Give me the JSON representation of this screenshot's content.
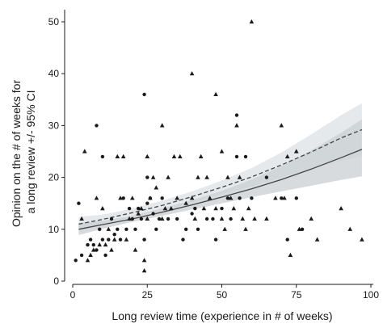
{
  "chart_data": {
    "type": "scatter",
    "xlabel": "Long review time (experience in # of weeks)",
    "ylabel": [
      "Opinion on the # of weeks for",
      "a long review +/- 95% CI"
    ],
    "xlim": [
      0,
      100
    ],
    "ylim": [
      0,
      52
    ],
    "x_ticks": [
      0,
      25,
      50,
      75,
      100
    ],
    "y_ticks": [
      0,
      10,
      20,
      30,
      40,
      50
    ],
    "grid": false,
    "colors": {
      "points": "#1a1a1a",
      "solid_line": "#444444",
      "dashed_line": "#444444",
      "band_solid": "#c9cfd3",
      "band_dashed": "#dde2e5"
    },
    "series": [
      {
        "marker": "circle",
        "points": [
          [
            1,
            4
          ],
          [
            2,
            15
          ],
          [
            3,
            5
          ],
          [
            5,
            7
          ],
          [
            6,
            8
          ],
          [
            7,
            7
          ],
          [
            8,
            6
          ],
          [
            8,
            30
          ],
          [
            9,
            10
          ],
          [
            10,
            8
          ],
          [
            10,
            24
          ],
          [
            11,
            5
          ],
          [
            12,
            8
          ],
          [
            13,
            12
          ],
          [
            14,
            9
          ],
          [
            15,
            10
          ],
          [
            16,
            8
          ],
          [
            17,
            16
          ],
          [
            18,
            10
          ],
          [
            19,
            14
          ],
          [
            20,
            12
          ],
          [
            21,
            10
          ],
          [
            22,
            14
          ],
          [
            23,
            12
          ],
          [
            24,
            36
          ],
          [
            24,
            8
          ],
          [
            25,
            20
          ],
          [
            25,
            15
          ],
          [
            26,
            16
          ],
          [
            27,
            13
          ],
          [
            28,
            10
          ],
          [
            29,
            12
          ],
          [
            30,
            16
          ],
          [
            32,
            12
          ],
          [
            35,
            12
          ],
          [
            37,
            8
          ],
          [
            38,
            10
          ],
          [
            40,
            13
          ],
          [
            41,
            14
          ],
          [
            42,
            10
          ],
          [
            45,
            12
          ],
          [
            47,
            12
          ],
          [
            48,
            8
          ],
          [
            50,
            14
          ],
          [
            52,
            16
          ],
          [
            53,
            12
          ],
          [
            55,
            32
          ],
          [
            55,
            24
          ],
          [
            56,
            16
          ],
          [
            58,
            24
          ],
          [
            60,
            16
          ],
          [
            65,
            20
          ],
          [
            70,
            16
          ],
          [
            72,
            8
          ],
          [
            75,
            16
          ],
          [
            77,
            10
          ]
        ]
      },
      {
        "marker": "triangle",
        "points": [
          [
            3,
            12
          ],
          [
            4,
            25
          ],
          [
            5,
            4
          ],
          [
            6,
            5
          ],
          [
            7,
            6
          ],
          [
            8,
            16
          ],
          [
            9,
            7
          ],
          [
            10,
            14
          ],
          [
            11,
            7
          ],
          [
            12,
            10
          ],
          [
            13,
            6
          ],
          [
            14,
            8
          ],
          [
            15,
            24
          ],
          [
            16,
            16
          ],
          [
            17,
            24
          ],
          [
            18,
            8
          ],
          [
            19,
            12
          ],
          [
            20,
            16
          ],
          [
            21,
            6
          ],
          [
            22,
            13
          ],
          [
            23,
            14
          ],
          [
            24,
            4
          ],
          [
            24,
            2
          ],
          [
            25,
            12
          ],
          [
            25,
            24
          ],
          [
            26,
            16
          ],
          [
            27,
            20
          ],
          [
            28,
            18
          ],
          [
            30,
            30
          ],
          [
            30,
            12
          ],
          [
            31,
            14
          ],
          [
            32,
            20
          ],
          [
            33,
            14
          ],
          [
            34,
            24
          ],
          [
            35,
            16
          ],
          [
            36,
            24
          ],
          [
            38,
            15
          ],
          [
            40,
            40
          ],
          [
            40,
            16
          ],
          [
            41,
            12
          ],
          [
            42,
            20
          ],
          [
            43,
            24
          ],
          [
            44,
            14
          ],
          [
            45,
            20
          ],
          [
            46,
            16
          ],
          [
            48,
            36
          ],
          [
            48,
            14
          ],
          [
            50,
            25
          ],
          [
            50,
            12
          ],
          [
            51,
            10
          ],
          [
            52,
            20
          ],
          [
            53,
            16
          ],
          [
            54,
            14
          ],
          [
            55,
            30
          ],
          [
            56,
            20
          ],
          [
            57,
            12
          ],
          [
            58,
            10
          ],
          [
            59,
            14
          ],
          [
            60,
            50
          ],
          [
            61,
            12
          ],
          [
            65,
            12
          ],
          [
            68,
            16
          ],
          [
            70,
            30
          ],
          [
            71,
            16
          ],
          [
            72,
            24
          ],
          [
            73,
            5
          ],
          [
            75,
            25
          ],
          [
            76,
            10
          ],
          [
            80,
            12
          ],
          [
            82,
            8
          ],
          [
            90,
            14
          ],
          [
            93,
            10
          ],
          [
            97,
            8
          ]
        ]
      }
    ],
    "fit_lines": [
      {
        "style": "solid",
        "x": [
          2,
          10,
          20,
          30,
          40,
          50,
          60,
          70,
          80,
          90,
          97
        ],
        "y": [
          10.0,
          10.9,
          12.0,
          13.3,
          14.7,
          16.2,
          17.8,
          19.6,
          21.6,
          23.8,
          25.4
        ],
        "ci_upper": [
          11.2,
          11.6,
          12.6,
          14.0,
          15.6,
          17.4,
          19.6,
          22.2,
          25.2,
          28.6,
          31.2
        ],
        "ci_lower": [
          8.9,
          10.1,
          11.4,
          12.6,
          13.8,
          15.0,
          16.2,
          17.3,
          18.4,
          19.5,
          20.2
        ]
      },
      {
        "style": "dashed",
        "x": [
          2,
          10,
          20,
          30,
          40,
          50,
          60,
          70,
          80,
          90,
          97
        ],
        "y": [
          11.0,
          11.9,
          13.2,
          14.6,
          16.3,
          18.1,
          20.1,
          22.4,
          24.9,
          27.6,
          29.2
        ],
        "ci_upper": [
          12.4,
          12.8,
          14.0,
          15.5,
          17.3,
          19.4,
          21.8,
          24.8,
          28.3,
          32.0,
          34.3
        ],
        "ci_lower": [
          9.8,
          11.0,
          12.4,
          13.7,
          15.2,
          16.8,
          18.3,
          20.0,
          21.6,
          23.2,
          24.1
        ]
      }
    ]
  }
}
